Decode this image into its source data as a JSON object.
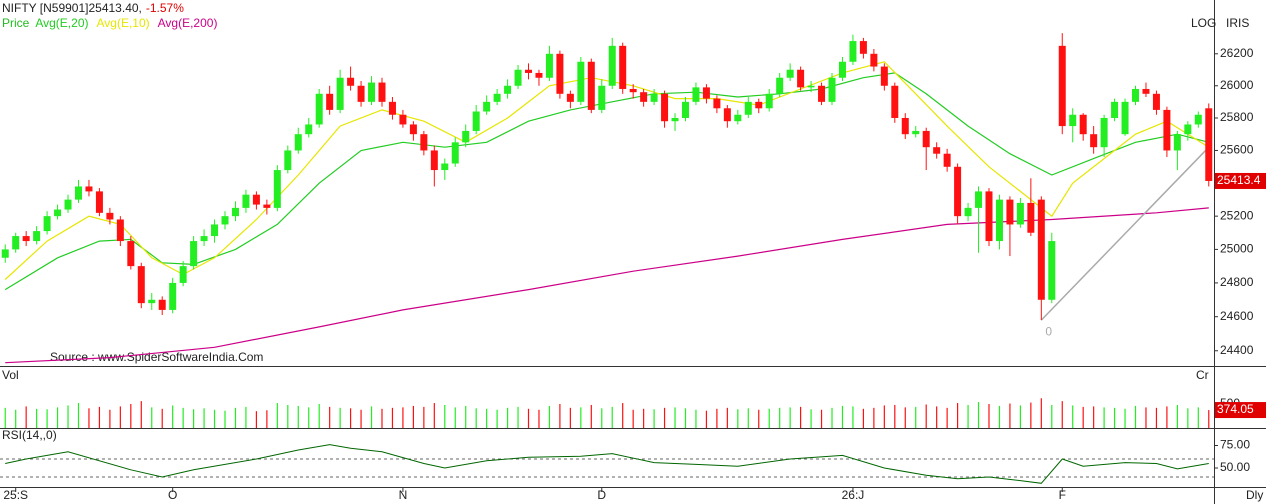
{
  "chart_data": {
    "type": "candlestick",
    "title": "NIFTY [N59901]25413.40,",
    "change": "-1.57%",
    "legend_title": "Price",
    "scale_label": "LOG",
    "source_label": "IRIS",
    "source": "Source : www.SpiderSoftwareIndia.Com",
    "period": "Dly",
    "log": true,
    "up_color": "#22ee22",
    "down_color": "#ff1111",
    "ylim": [
      24311,
      26540
    ],
    "yticks": [
      24400,
      24600,
      24800,
      25000,
      25200,
      25400,
      25600,
      25800,
      26000,
      26200
    ],
    "xlim": [
      -0.5,
      115.5
    ],
    "xticks": [
      {
        "value": 1,
        "label": "25:S"
      },
      {
        "value": 16,
        "label": "O"
      },
      {
        "value": 38,
        "label": "N"
      },
      {
        "value": 57,
        "label": "D"
      },
      {
        "value": 81,
        "label": "26:J"
      },
      {
        "value": 101,
        "label": "F"
      }
    ],
    "ohlc": [
      [
        24950,
        25030,
        24920,
        25000
      ],
      [
        25000,
        25100,
        24980,
        25080
      ],
      [
        25080,
        25110,
        25020,
        25050
      ],
      [
        25050,
        25140,
        25030,
        25110
      ],
      [
        25110,
        25230,
        25090,
        25200
      ],
      [
        25200,
        25270,
        25180,
        25240
      ],
      [
        25240,
        25330,
        25220,
        25300
      ],
      [
        25300,
        25420,
        25280,
        25380
      ],
      [
        25380,
        25420,
        25320,
        25350
      ],
      [
        25350,
        25370,
        25200,
        25220
      ],
      [
        25220,
        25250,
        25150,
        25180
      ],
      [
        25180,
        25200,
        25020,
        25050
      ],
      [
        25050,
        25080,
        24880,
        24900
      ],
      [
        24900,
        24920,
        24650,
        24680
      ],
      [
        24680,
        24740,
        24640,
        24700
      ],
      [
        24700,
        24720,
        24610,
        24640
      ],
      [
        24640,
        24830,
        24620,
        24800
      ],
      [
        24800,
        24930,
        24780,
        24900
      ],
      [
        24900,
        25080,
        24880,
        25050
      ],
      [
        25050,
        25120,
        25020,
        25080
      ],
      [
        25080,
        25180,
        25040,
        25150
      ],
      [
        25150,
        25230,
        25120,
        25200
      ],
      [
        25200,
        25290,
        25170,
        25250
      ],
      [
        25250,
        25360,
        25220,
        25330
      ],
      [
        25330,
        25350,
        25240,
        25270
      ],
      [
        25270,
        25300,
        25210,
        25250
      ],
      [
        25250,
        25510,
        25230,
        25480
      ],
      [
        25480,
        25630,
        25460,
        25600
      ],
      [
        25600,
        25740,
        25580,
        25700
      ],
      [
        25700,
        25800,
        25680,
        25760
      ],
      [
        25760,
        25980,
        25740,
        25950
      ],
      [
        25950,
        26000,
        25820,
        25850
      ],
      [
        25850,
        26100,
        25830,
        26050
      ],
      [
        26050,
        26120,
        25970,
        26000
      ],
      [
        26000,
        26030,
        25870,
        25900
      ],
      [
        25900,
        26060,
        25880,
        26020
      ],
      [
        26020,
        26050,
        25870,
        25900
      ],
      [
        25900,
        25930,
        25790,
        25820
      ],
      [
        25820,
        25850,
        25740,
        25760
      ],
      [
        25760,
        25780,
        25660,
        25700
      ],
      [
        25700,
        25720,
        25570,
        25600
      ],
      [
        25600,
        25630,
        25380,
        25480
      ],
      [
        25480,
        25550,
        25420,
        25520
      ],
      [
        25520,
        25680,
        25500,
        25650
      ],
      [
        25650,
        25760,
        25620,
        25720
      ],
      [
        25720,
        25880,
        25700,
        25840
      ],
      [
        25840,
        25940,
        25820,
        25900
      ],
      [
        25900,
        25980,
        25880,
        25950
      ],
      [
        25950,
        26040,
        25920,
        26000
      ],
      [
        26000,
        26130,
        25980,
        26100
      ],
      [
        26100,
        26140,
        26040,
        26080
      ],
      [
        26080,
        26100,
        26000,
        26050
      ],
      [
        26050,
        26250,
        26030,
        26200
      ],
      [
        26200,
        26220,
        25920,
        25950
      ],
      [
        25950,
        25970,
        25860,
        25900
      ],
      [
        25900,
        26180,
        25880,
        26150
      ],
      [
        26150,
        26170,
        25830,
        25850
      ],
      [
        25850,
        26040,
        25830,
        26000
      ],
      [
        26000,
        26300,
        25980,
        26250
      ],
      [
        26250,
        26270,
        25950,
        25980
      ],
      [
        25980,
        26010,
        25920,
        25960
      ],
      [
        25960,
        25980,
        25870,
        25900
      ],
      [
        25900,
        25980,
        25880,
        25950
      ],
      [
        25950,
        25970,
        25740,
        25780
      ],
      [
        25780,
        25830,
        25720,
        25800
      ],
      [
        25800,
        25930,
        25780,
        25900
      ],
      [
        25900,
        26020,
        25880,
        25990
      ],
      [
        25990,
        26010,
        25890,
        25920
      ],
      [
        25920,
        25940,
        25830,
        25860
      ],
      [
        25860,
        25880,
        25740,
        25780
      ],
      [
        25780,
        25850,
        25760,
        25820
      ],
      [
        25820,
        25930,
        25800,
        25900
      ],
      [
        25900,
        25920,
        25830,
        25860
      ],
      [
        25860,
        25980,
        25840,
        25950
      ],
      [
        25950,
        26080,
        25930,
        26050
      ],
      [
        26050,
        26140,
        26030,
        26100
      ],
      [
        26100,
        26120,
        25970,
        25990
      ],
      [
        25990,
        26030,
        25960,
        26000
      ],
      [
        26000,
        26020,
        25880,
        25900
      ],
      [
        25900,
        26080,
        25880,
        26050
      ],
      [
        26050,
        26180,
        26030,
        26150
      ],
      [
        26150,
        26320,
        26130,
        26280
      ],
      [
        26280,
        26300,
        26170,
        26200
      ],
      [
        26200,
        26230,
        26090,
        26120
      ],
      [
        26120,
        26140,
        25970,
        26000
      ],
      [
        26000,
        26020,
        25770,
        25800
      ],
      [
        25800,
        25830,
        25670,
        25700
      ],
      [
        25700,
        25750,
        25680,
        25720
      ],
      [
        25720,
        25740,
        25480,
        25620
      ],
      [
        25620,
        25650,
        25550,
        25580
      ],
      [
        25580,
        25610,
        25470,
        25500
      ],
      [
        25500,
        25520,
        25150,
        25200
      ],
      [
        25200,
        25280,
        25170,
        25250
      ],
      [
        25250,
        25380,
        24980,
        25350
      ],
      [
        25350,
        25370,
        25020,
        25050
      ],
      [
        25050,
        25330,
        25000,
        25300
      ],
      [
        25300,
        25320,
        24960,
        25150
      ],
      [
        25150,
        25310,
        25130,
        25280
      ],
      [
        25280,
        25430,
        25080,
        25100
      ],
      [
        25300,
        25320,
        24580,
        24700
      ],
      [
        24700,
        25100,
        24680,
        25050
      ],
      [
        26250,
        26330,
        25700,
        25750
      ],
      [
        25750,
        25860,
        25650,
        25820
      ],
      [
        25820,
        25830,
        25660,
        25700
      ],
      [
        25700,
        25750,
        25580,
        25620
      ],
      [
        25620,
        25820,
        25560,
        25800
      ],
      [
        25800,
        25920,
        25780,
        25900
      ],
      [
        25700,
        25920,
        25690,
        25900
      ],
      [
        25900,
        26000,
        25880,
        25980
      ],
      [
        25980,
        26020,
        25930,
        25950
      ],
      [
        25950,
        25970,
        25820,
        25850
      ],
      [
        25850,
        25870,
        25560,
        25600
      ],
      [
        25600,
        25720,
        25480,
        25700
      ],
      [
        25700,
        25780,
        25660,
        25760
      ],
      [
        25760,
        25840,
        25740,
        25820
      ],
      [
        25860,
        25890,
        25380,
        25413.4
      ]
    ],
    "series": [
      {
        "name": "Avg(E,20)",
        "color": "#22cc22",
        "x": [
          0,
          5,
          9,
          12,
          15,
          18,
          22,
          26,
          30,
          34,
          38,
          42,
          46,
          50,
          54,
          58,
          62,
          66,
          70,
          74,
          78,
          82,
          85,
          88,
          92,
          96,
          100,
          104,
          108,
          112,
          115
        ],
        "values": [
          24760,
          24950,
          25050,
          25060,
          24920,
          24910,
          25000,
          25150,
          25400,
          25600,
          25650,
          25620,
          25650,
          25780,
          25850,
          25900,
          25950,
          25960,
          25930,
          25950,
          25980,
          26050,
          26080,
          25950,
          25750,
          25580,
          25450,
          25550,
          25650,
          25700,
          25650
        ]
      },
      {
        "name": "Avg(E,10)",
        "color": "#e6e600",
        "x": [
          0,
          4,
          8,
          11,
          14,
          17,
          20,
          24,
          28,
          32,
          36,
          40,
          44,
          48,
          52,
          56,
          60,
          64,
          68,
          72,
          76,
          80,
          84,
          87,
          90,
          94,
          98,
          100,
          102,
          105,
          108,
          111,
          115
        ],
        "values": [
          24820,
          25050,
          25200,
          25150,
          24950,
          24850,
          24950,
          25180,
          25450,
          25750,
          25850,
          25780,
          25650,
          25800,
          26000,
          26050,
          26000,
          25920,
          25920,
          25880,
          25980,
          26080,
          26150,
          25950,
          25750,
          25500,
          25300,
          25200,
          25400,
          25550,
          25700,
          25780,
          25620
        ]
      },
      {
        "name": "Avg(E,200)",
        "color": "#cc0088",
        "x": [
          0,
          10,
          20,
          30,
          38,
          50,
          60,
          70,
          80,
          90,
          100,
          110,
          115
        ],
        "values": [
          24330,
          24360,
          24420,
          24540,
          24640,
          24760,
          24870,
          24960,
          25060,
          25150,
          25180,
          25220,
          25250
        ]
      }
    ],
    "trendline": {
      "label": "0",
      "color": "#aaaaaa",
      "x": [
        99,
        115
      ],
      "values": [
        24580,
        25620
      ]
    },
    "volume": {
      "label": "Vol",
      "unit": "Cr",
      "ylim": [
        0,
        1250
      ],
      "yticks": [
        500
      ],
      "values": [
        420,
        380,
        450,
        400,
        390,
        430,
        470,
        520,
        410,
        440,
        380,
        450,
        500,
        560,
        430,
        400,
        470,
        420,
        390,
        410,
        380,
        360,
        420,
        440,
        350,
        370,
        520,
        480,
        460,
        430,
        500,
        440,
        420,
        410,
        380,
        450,
        400,
        420,
        430,
        460,
        440,
        520,
        480,
        430,
        460,
        410,
        400,
        380,
        420,
        440,
        400,
        380,
        460,
        500,
        420,
        430,
        480,
        410,
        440,
        520,
        380,
        400,
        390,
        420,
        430,
        410,
        380,
        360,
        400,
        420,
        390,
        410,
        380,
        400,
        420,
        430,
        440,
        390,
        380,
        420,
        460,
        450,
        400,
        420,
        470,
        480,
        430,
        440,
        490,
        450,
        420,
        520,
        480,
        540,
        500,
        460,
        510,
        470,
        530,
        620,
        480,
        560,
        470,
        440,
        450,
        430,
        420,
        400,
        460,
        430,
        420,
        450,
        480,
        410,
        430,
        374.05
      ]
    },
    "rsi": {
      "label": "RSI(14,,0)",
      "color": "#006600",
      "ylim": [
        27.8,
        92.2
      ],
      "yticks": [
        {
          "value": 75,
          "label": "75.00"
        },
        {
          "value": 50,
          "label": "50.00"
        }
      ],
      "levels": [
        60,
        40
      ],
      "x": [
        0,
        2,
        6,
        12,
        15,
        18,
        24,
        28,
        31,
        33,
        36,
        40,
        42,
        46,
        50,
        55,
        58,
        62,
        66,
        70,
        75,
        80,
        84,
        88,
        91,
        94,
        97,
        99,
        101,
        103,
        107,
        110,
        112,
        115
      ],
      "values": [
        55,
        60,
        68,
        48,
        40,
        48,
        60,
        70,
        76,
        72,
        68,
        55,
        50,
        58,
        62,
        63,
        66,
        56,
        54,
        52,
        60,
        64,
        50,
        42,
        38,
        40,
        36,
        33,
        60,
        52,
        56,
        55,
        49,
        55
      ]
    }
  }
}
